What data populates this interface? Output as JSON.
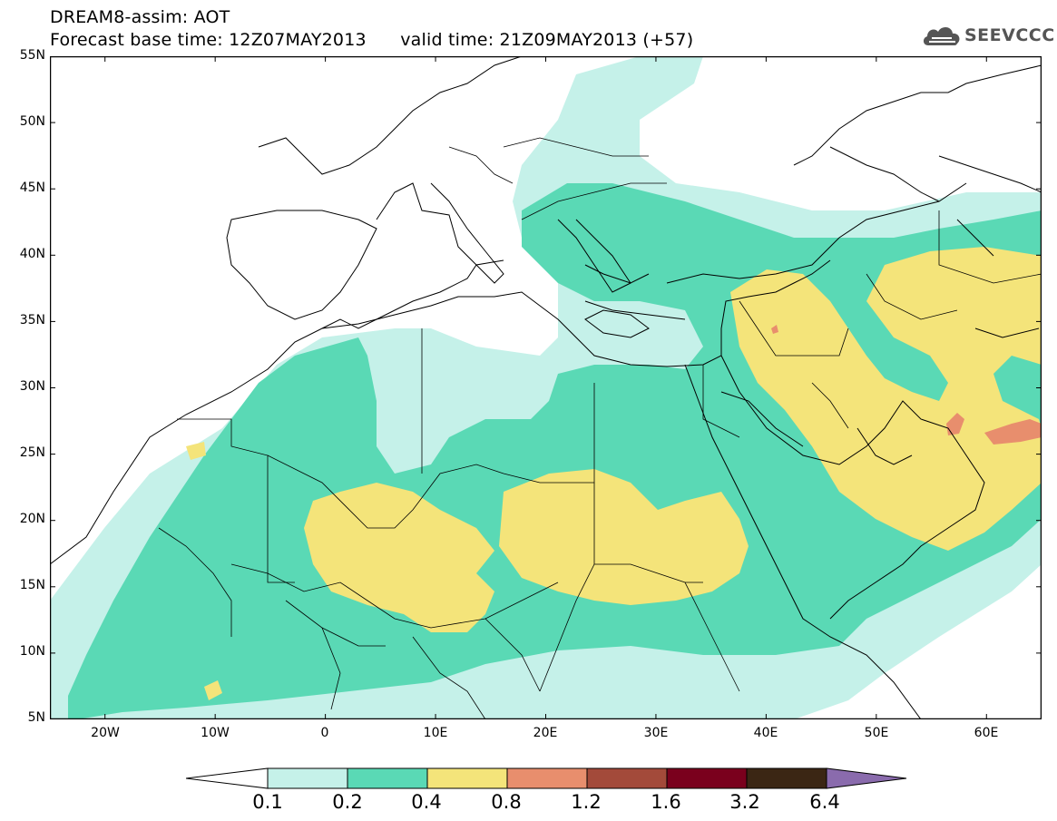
{
  "title": {
    "line1": "DREAM8-assim: AOT",
    "line2": "Forecast base time: 12Z07MAY2013      valid time: 21Z09MAY2013 (+57)"
  },
  "logo": {
    "text": "SEEVCCC",
    "icon": "cloud-logo-icon"
  },
  "map": {
    "lat_labels": [
      "55N",
      "50N",
      "45N",
      "40N",
      "35N",
      "30N",
      "25N",
      "20N",
      "15N",
      "10N",
      "5N"
    ],
    "lon_labels": [
      "20W",
      "10W",
      "0",
      "10E",
      "20E",
      "30E",
      "40E",
      "50E",
      "60E"
    ],
    "lat_range": [
      5,
      55
    ],
    "lon_range": [
      -25,
      65
    ]
  },
  "legend": {
    "levels": [
      "0.1",
      "0.2",
      "0.4",
      "0.8",
      "1.2",
      "1.6",
      "3.2",
      "6.4"
    ],
    "colors": [
      "#ffffff",
      "#c5f1e9",
      "#5ad9b5",
      "#f4e47a",
      "#e88e6d",
      "#a34a3a",
      "#7a001d",
      "#3b2614",
      "#8a6bad"
    ]
  }
}
